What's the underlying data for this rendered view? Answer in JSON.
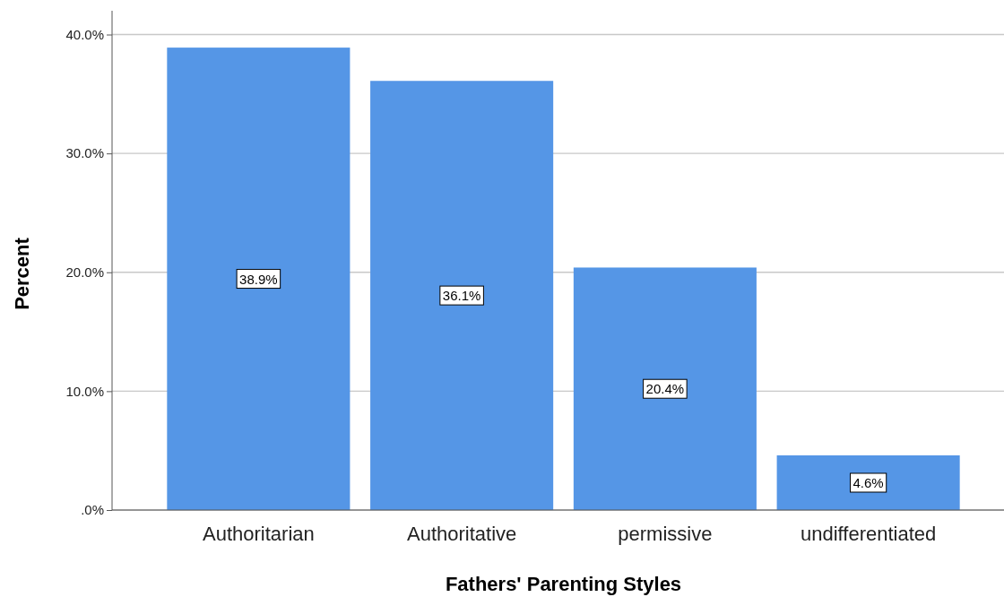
{
  "chart_data": {
    "type": "bar",
    "xlabel": "Fathers' Parenting Styles",
    "ylabel": "Percent",
    "categories": [
      "Authoritarian",
      "Authoritative",
      "permissive",
      "undifferentiated"
    ],
    "values": [
      38.9,
      36.1,
      20.4,
      4.6
    ],
    "value_labels": [
      "38.9%",
      "36.1%",
      "20.4%",
      "4.6%"
    ],
    "color": "#5596e6",
    "ylim": [
      0,
      42
    ],
    "yticks": [
      {
        "value": 0,
        "label": ".0%"
      },
      {
        "value": 10,
        "label": "10.0%"
      },
      {
        "value": 20,
        "label": "20.0%"
      },
      {
        "value": 30,
        "label": "30.0%"
      },
      {
        "value": 40,
        "label": "40.0%"
      }
    ],
    "grid": "y"
  }
}
